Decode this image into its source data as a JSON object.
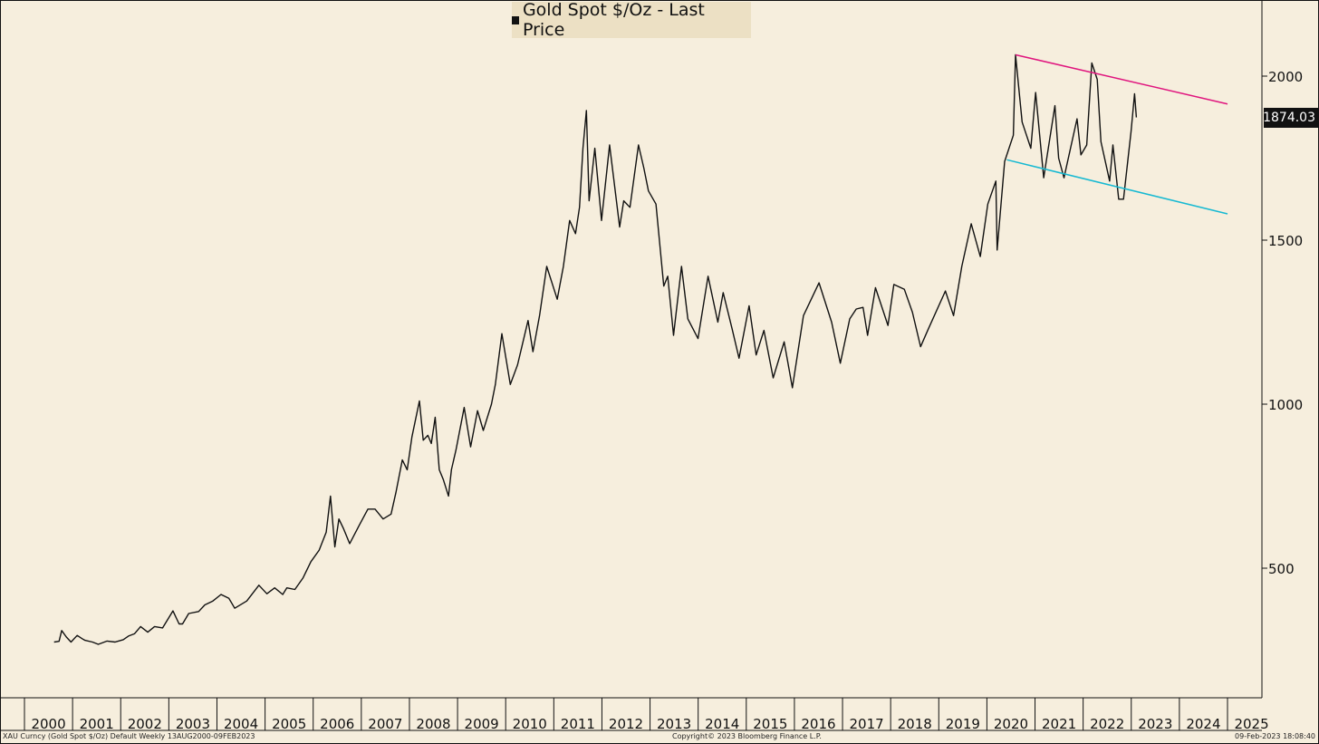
{
  "legend": {
    "label": "Gold Spot $/Oz - Last Price"
  },
  "last_price_tag": "1874.03",
  "footer": {
    "left": "XAU Curncy (Gold Spot  $/Oz) Default  Weekly 13AUG2000-09FEB2023",
    "center": "Copyright© 2023 Bloomberg Finance L.P.",
    "right": "09-Feb-2023 18:08:40"
  },
  "colors": {
    "background": "#f6eedd",
    "line": "#111111",
    "upper_trend": "#e0157e",
    "lower_trend": "#16b9d2"
  },
  "chart_data": {
    "type": "line",
    "title": "Gold Spot $/Oz - Last Price",
    "xlabel": "",
    "ylabel": "",
    "ylim": [
      180,
      2220
    ],
    "y_ticks": [
      500,
      1000,
      1500,
      2000
    ],
    "x_ticks": [
      "2000",
      "2001",
      "2002",
      "2003",
      "2004",
      "2005",
      "2006",
      "2007",
      "2008",
      "2009",
      "2010",
      "2011",
      "2012",
      "2013",
      "2014",
      "2015",
      "2016",
      "2017",
      "2018",
      "2019",
      "2020",
      "2021",
      "2022",
      "2023",
      "2024",
      "2025"
    ],
    "legend_position": "top-center",
    "grid": false,
    "series": [
      {
        "name": "Gold Spot $/Oz - Last Price",
        "points": [
          [
            "2000-08-13",
            275
          ],
          [
            "2000-09-20",
            277
          ],
          [
            "2000-10-10",
            310
          ],
          [
            "2000-11-15",
            290
          ],
          [
            "2000-12-20",
            275
          ],
          [
            "2001-02-05",
            295
          ],
          [
            "2001-03-15",
            285
          ],
          [
            "2001-04-05",
            280
          ],
          [
            "2001-06-01",
            275
          ],
          [
            "2001-07-15",
            268
          ],
          [
            "2001-09-20",
            278
          ],
          [
            "2001-11-20",
            275
          ],
          [
            "2002-01-20",
            282
          ],
          [
            "2002-03-01",
            293
          ],
          [
            "2002-04-15",
            300
          ],
          [
            "2002-06-01",
            322
          ],
          [
            "2002-07-25",
            305
          ],
          [
            "2002-09-15",
            322
          ],
          [
            "2002-11-15",
            318
          ],
          [
            "2003-02-01",
            370
          ],
          [
            "2003-03-20",
            330
          ],
          [
            "2003-04-15",
            330
          ],
          [
            "2003-06-01",
            362
          ],
          [
            "2003-08-15",
            368
          ],
          [
            "2003-10-01",
            388
          ],
          [
            "2003-12-01",
            400
          ],
          [
            "2004-02-01",
            420
          ],
          [
            "2004-04-01",
            408
          ],
          [
            "2004-05-15",
            378
          ],
          [
            "2004-08-15",
            400
          ],
          [
            "2004-11-15",
            448
          ],
          [
            "2005-01-15",
            422
          ],
          [
            "2005-03-15",
            440
          ],
          [
            "2005-05-15",
            420
          ],
          [
            "2005-06-15",
            440
          ],
          [
            "2005-08-15",
            435
          ],
          [
            "2005-10-15",
            470
          ],
          [
            "2005-12-15",
            520
          ],
          [
            "2006-02-15",
            555
          ],
          [
            "2006-04-10",
            610
          ],
          [
            "2006-05-12",
            720
          ],
          [
            "2006-06-14",
            565
          ],
          [
            "2006-07-15",
            650
          ],
          [
            "2006-08-20",
            620
          ],
          [
            "2006-10-05",
            575
          ],
          [
            "2006-12-15",
            630
          ],
          [
            "2007-02-20",
            680
          ],
          [
            "2007-04-15",
            680
          ],
          [
            "2007-06-15",
            650
          ],
          [
            "2007-08-15",
            665
          ],
          [
            "2007-09-20",
            730
          ],
          [
            "2007-11-08",
            830
          ],
          [
            "2007-12-15",
            800
          ],
          [
            "2008-01-20",
            900
          ],
          [
            "2008-03-17",
            1010
          ],
          [
            "2008-04-15",
            890
          ],
          [
            "2008-05-20",
            905
          ],
          [
            "2008-06-15",
            880
          ],
          [
            "2008-07-15",
            960
          ],
          [
            "2008-08-15",
            800
          ],
          [
            "2008-09-15",
            770
          ],
          [
            "2008-10-24",
            720
          ],
          [
            "2008-11-15",
            800
          ],
          [
            "2008-12-20",
            860
          ],
          [
            "2009-02-20",
            990
          ],
          [
            "2009-04-10",
            870
          ],
          [
            "2009-06-01",
            980
          ],
          [
            "2009-07-15",
            920
          ],
          [
            "2009-09-15",
            1000
          ],
          [
            "2009-10-15",
            1060
          ],
          [
            "2009-12-03",
            1215
          ],
          [
            "2010-02-05",
            1060
          ],
          [
            "2010-04-01",
            1120
          ],
          [
            "2010-06-20",
            1255
          ],
          [
            "2010-07-27",
            1160
          ],
          [
            "2010-09-15",
            1270
          ],
          [
            "2010-11-08",
            1420
          ],
          [
            "2011-01-27",
            1320
          ],
          [
            "2011-03-15",
            1420
          ],
          [
            "2011-05-01",
            1560
          ],
          [
            "2011-06-15",
            1520
          ],
          [
            "2011-07-15",
            1600
          ],
          [
            "2011-08-10",
            1780
          ],
          [
            "2011-09-05",
            1895
          ],
          [
            "2011-09-26",
            1620
          ],
          [
            "2011-11-08",
            1780
          ],
          [
            "2011-12-29",
            1560
          ],
          [
            "2012-02-28",
            1790
          ],
          [
            "2012-05-15",
            1540
          ],
          [
            "2012-06-15",
            1620
          ],
          [
            "2012-08-01",
            1600
          ],
          [
            "2012-10-05",
            1790
          ],
          [
            "2012-11-15",
            1720
          ],
          [
            "2012-12-20",
            1650
          ],
          [
            "2013-02-15",
            1610
          ],
          [
            "2013-04-15",
            1360
          ],
          [
            "2013-05-15",
            1390
          ],
          [
            "2013-06-28",
            1210
          ],
          [
            "2013-08-28",
            1420
          ],
          [
            "2013-10-15",
            1260
          ],
          [
            "2013-12-31",
            1200
          ],
          [
            "2014-03-17",
            1390
          ],
          [
            "2014-05-30",
            1250
          ],
          [
            "2014-07-10",
            1340
          ],
          [
            "2014-09-15",
            1230
          ],
          [
            "2014-11-07",
            1140
          ],
          [
            "2015-01-22",
            1300
          ],
          [
            "2015-03-17",
            1150
          ],
          [
            "2015-05-15",
            1225
          ],
          [
            "2015-07-24",
            1080
          ],
          [
            "2015-10-15",
            1190
          ],
          [
            "2015-12-17",
            1050
          ],
          [
            "2016-03-10",
            1270
          ],
          [
            "2016-07-06",
            1370
          ],
          [
            "2016-10-10",
            1250
          ],
          [
            "2016-12-15",
            1125
          ],
          [
            "2017-02-25",
            1260
          ],
          [
            "2017-04-15",
            1290
          ],
          [
            "2017-06-06",
            1295
          ],
          [
            "2017-07-10",
            1210
          ],
          [
            "2017-09-08",
            1355
          ],
          [
            "2017-12-12",
            1240
          ],
          [
            "2018-01-25",
            1365
          ],
          [
            "2018-04-15",
            1350
          ],
          [
            "2018-06-15",
            1280
          ],
          [
            "2018-08-16",
            1175
          ],
          [
            "2018-10-15",
            1230
          ],
          [
            "2019-02-20",
            1345
          ],
          [
            "2019-04-23",
            1270
          ],
          [
            "2019-06-25",
            1420
          ],
          [
            "2019-09-04",
            1550
          ],
          [
            "2019-11-12",
            1450
          ],
          [
            "2020-01-08",
            1610
          ],
          [
            "2020-03-09",
            1680
          ],
          [
            "2020-03-19",
            1470
          ],
          [
            "2020-05-15",
            1740
          ],
          [
            "2020-07-20",
            1820
          ],
          [
            "2020-08-06",
            2065
          ],
          [
            "2020-09-25",
            1860
          ],
          [
            "2020-11-30",
            1780
          ],
          [
            "2021-01-06",
            1950
          ],
          [
            "2021-03-08",
            1690
          ],
          [
            "2021-06-01",
            1910
          ],
          [
            "2021-06-29",
            1750
          ],
          [
            "2021-08-09",
            1690
          ],
          [
            "2021-11-16",
            1870
          ],
          [
            "2021-12-15",
            1760
          ],
          [
            "2022-01-28",
            1790
          ],
          [
            "2022-03-08",
            2040
          ],
          [
            "2022-04-18",
            1990
          ],
          [
            "2022-05-16",
            1800
          ],
          [
            "2022-07-21",
            1680
          ],
          [
            "2022-08-15",
            1790
          ],
          [
            "2022-09-28",
            1625
          ],
          [
            "2022-11-03",
            1625
          ],
          [
            "2022-12-30",
            1830
          ],
          [
            "2023-01-26",
            1946
          ],
          [
            "2023-02-09",
            1874
          ]
        ]
      }
    ],
    "annotations": [
      {
        "type": "trendline",
        "color": "#e0157e",
        "from": [
          "2020-08-06",
          2065
        ],
        "to": [
          "2025-01-01",
          1915
        ]
      },
      {
        "type": "trendline",
        "color": "#16b9d2",
        "from": [
          "2020-06-01",
          1745
        ],
        "to": [
          "2025-01-01",
          1580
        ]
      }
    ],
    "last_value": 1874.03
  }
}
